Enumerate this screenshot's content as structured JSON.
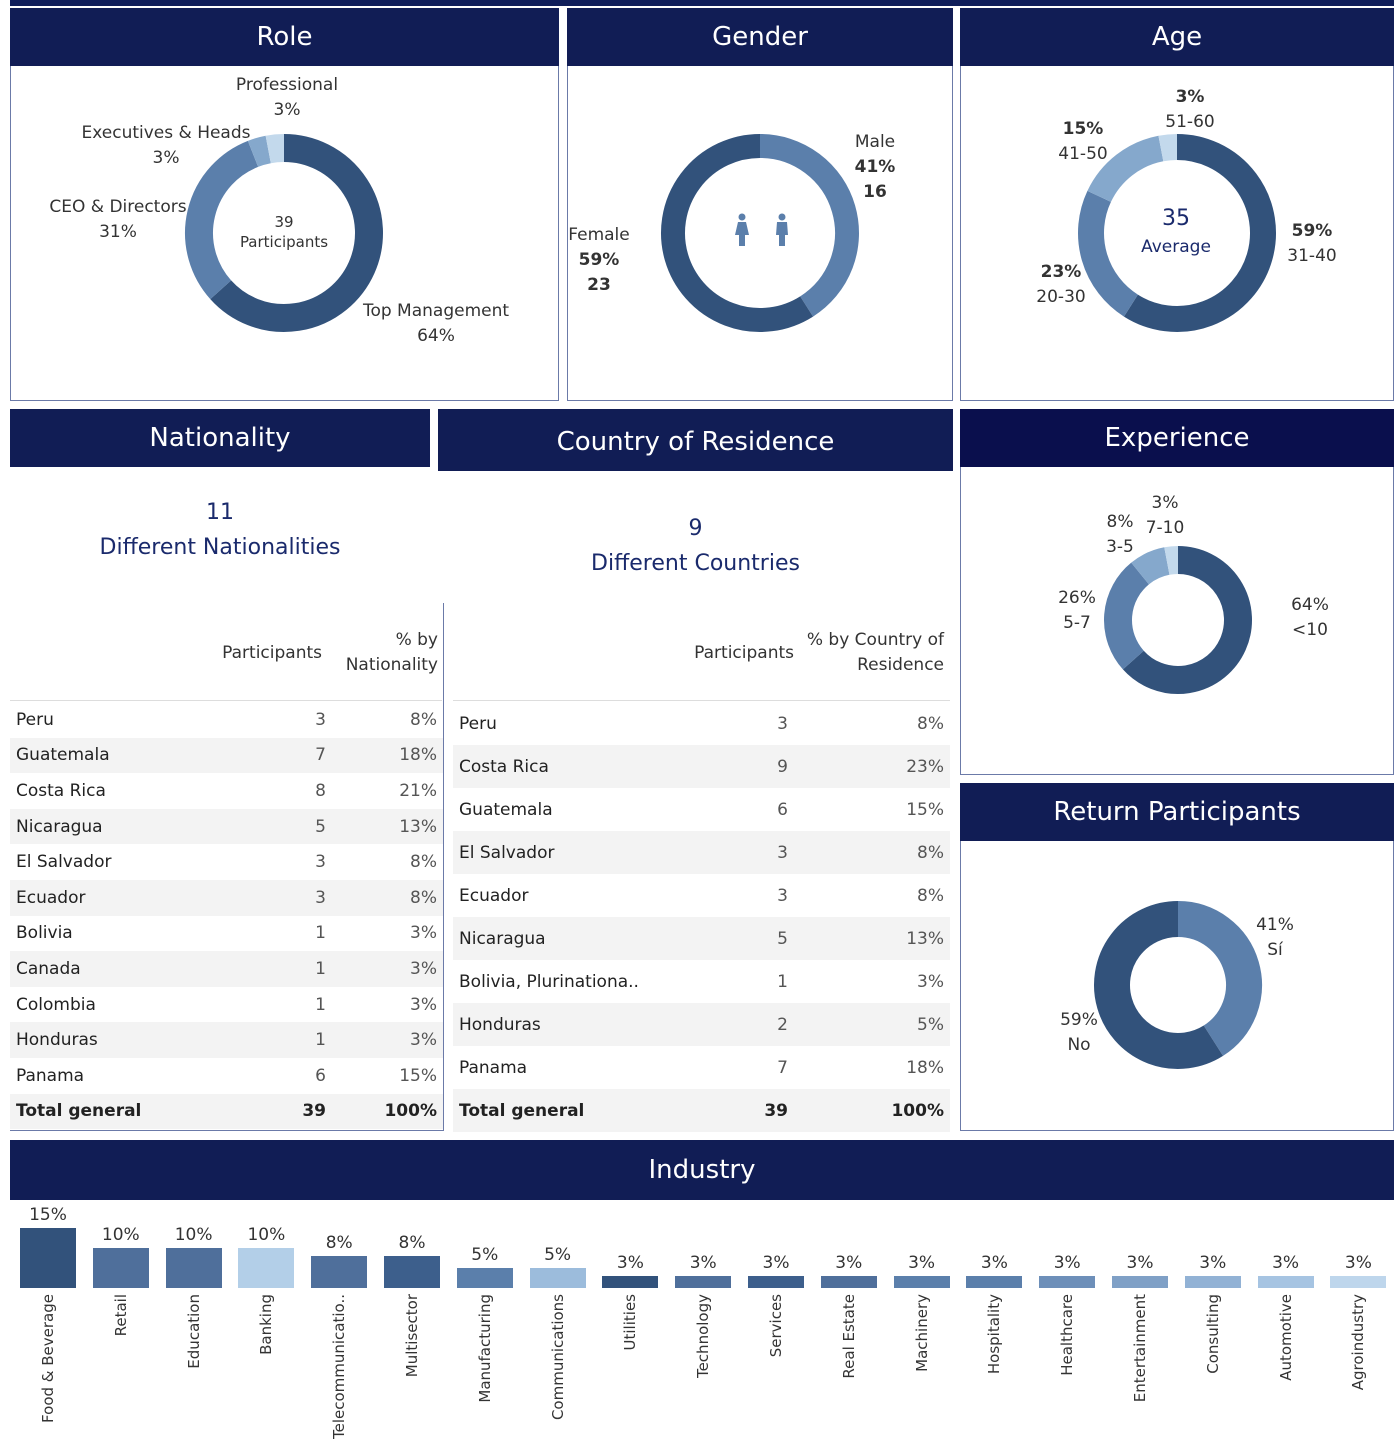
{
  "role": {
    "title": "Role",
    "center_count": "39",
    "center_label": "Participants",
    "slices": [
      {
        "name": "Top Management",
        "pct": "64%",
        "value": 64,
        "color": "#32527b"
      },
      {
        "name": "CEO & Directors",
        "pct": "31%",
        "value": 31,
        "color": "#5b7fab"
      },
      {
        "name": "Executives &  Heads",
        "pct": "3%",
        "value": 3,
        "color": "#85a8cc"
      },
      {
        "name": "Professional",
        "pct": "3%",
        "value": 3,
        "color": "#c3d9ec"
      }
    ]
  },
  "gender": {
    "title": "Gender",
    "slices": [
      {
        "name": "Male",
        "pct": "41%",
        "count": "16",
        "value": 41,
        "color": "#5b7fab"
      },
      {
        "name": "Female",
        "pct": "59%",
        "count": "23",
        "value": 59,
        "color": "#32527b"
      }
    ]
  },
  "age": {
    "title": "Age",
    "center_value": "35",
    "center_label": "Average",
    "slices": [
      {
        "name": "31-40",
        "pct": "59%",
        "value": 59,
        "color": "#32527b"
      },
      {
        "name": "20-30",
        "pct": "23%",
        "value": 23,
        "color": "#5b7fab"
      },
      {
        "name": "41-50",
        "pct": "15%",
        "value": 15,
        "color": "#85a8cc"
      },
      {
        "name": "51-60",
        "pct": "3%",
        "value": 3,
        "color": "#c3d9ec"
      }
    ]
  },
  "nationality": {
    "title": "Nationality",
    "count": "11",
    "count_label": "Different Nationalities",
    "col1": "Participants",
    "col2_line1": "% by",
    "col2_line2": "Nationality",
    "rows": [
      {
        "name": "Peru",
        "n": "3",
        "pct": "8%"
      },
      {
        "name": "Guatemala",
        "n": "7",
        "pct": "18%"
      },
      {
        "name": "Costa Rica",
        "n": "8",
        "pct": "21%"
      },
      {
        "name": "Nicaragua",
        "n": "5",
        "pct": "13%"
      },
      {
        "name": "El Salvador",
        "n": "3",
        "pct": "8%"
      },
      {
        "name": "Ecuador",
        "n": "3",
        "pct": "8%"
      },
      {
        "name": "Bolivia",
        "n": "1",
        "pct": "3%"
      },
      {
        "name": "Canada",
        "n": "1",
        "pct": "3%"
      },
      {
        "name": "Colombia",
        "n": "1",
        "pct": "3%"
      },
      {
        "name": "Honduras",
        "n": "1",
        "pct": "3%"
      },
      {
        "name": "Panama",
        "n": "6",
        "pct": "15%"
      }
    ],
    "total": {
      "name": "Total general",
      "n": "39",
      "pct": "100%"
    }
  },
  "residence": {
    "title": "Country of Residence",
    "count": "9",
    "count_label": "Different Countries",
    "col1": "Participants",
    "col2_line1": "% by Country of",
    "col2_line2": "Residence",
    "rows": [
      {
        "name": "Peru",
        "n": "3",
        "pct": "8%"
      },
      {
        "name": "Costa Rica",
        "n": "9",
        "pct": "23%"
      },
      {
        "name": "Guatemala",
        "n": "6",
        "pct": "15%"
      },
      {
        "name": "El Salvador",
        "n": "3",
        "pct": "8%"
      },
      {
        "name": "Ecuador",
        "n": "3",
        "pct": "8%"
      },
      {
        "name": "Nicaragua",
        "n": "5",
        "pct": "13%"
      },
      {
        "name": "Bolivia, Plurinationa..",
        "n": "1",
        "pct": "3%"
      },
      {
        "name": "Honduras",
        "n": "2",
        "pct": "5%"
      },
      {
        "name": "Panama",
        "n": "7",
        "pct": "18%"
      }
    ],
    "total": {
      "name": "Total general",
      "n": "39",
      "pct": "100%"
    }
  },
  "experience": {
    "title": "Experience",
    "slices": [
      {
        "name": "<10",
        "pct": "64%",
        "value": 64,
        "color": "#32527b"
      },
      {
        "name": "5-7",
        "pct": "26%",
        "value": 26,
        "color": "#5b7fab"
      },
      {
        "name": "3-5",
        "pct": "8%",
        "value": 8,
        "color": "#85a8cc"
      },
      {
        "name": "7-10",
        "pct": "3%",
        "value": 3,
        "color": "#c3d9ec"
      }
    ]
  },
  "return_participants": {
    "title": "Return Participants",
    "slices": [
      {
        "name": "Sí",
        "pct": "41%",
        "value": 41,
        "color": "#5b7fab"
      },
      {
        "name": "No",
        "pct": "59%",
        "value": 59,
        "color": "#32527b"
      }
    ]
  },
  "industry": {
    "title": "Industry"
  },
  "chart_data": {
    "type": "bar",
    "title": "Industry",
    "categories": [
      "Food & Beverage",
      "Retail",
      "Education",
      "Banking",
      "Telecommunicatio..",
      "Multisector",
      "Manufacturing",
      "Communications",
      "Utilities",
      "Technology",
      "Services",
      "Real Estate",
      "Machinery",
      "Hospitality",
      "Healthcare",
      "Entertainment",
      "Consulting",
      "Automotive",
      "Agroindustry"
    ],
    "values": [
      15,
      10,
      10,
      10,
      8,
      8,
      5,
      5,
      3,
      3,
      3,
      3,
      3,
      3,
      3,
      3,
      3,
      3,
      3
    ],
    "labels": [
      "15%",
      "10%",
      "10%",
      "10%",
      "8%",
      "8%",
      "5%",
      "5%",
      "3%",
      "3%",
      "3%",
      "3%",
      "3%",
      "3%",
      "3%",
      "3%",
      "3%",
      "3%",
      "3%"
    ],
    "colors": [
      "#32527b",
      "#4f6f9b",
      "#4f6f9b",
      "#b3cfe8",
      "#4f6f9b",
      "#3d5f8c",
      "#5b7fab",
      "#9cbcdc",
      "#32527b",
      "#4f6f9b",
      "#3d5f8c",
      "#4f6f9b",
      "#5b7fab",
      "#5b7fab",
      "#6d8fb9",
      "#7fa0c6",
      "#92b2d5",
      "#a6c4e2",
      "#bed6ec"
    ],
    "ylim": [
      0,
      15
    ]
  }
}
